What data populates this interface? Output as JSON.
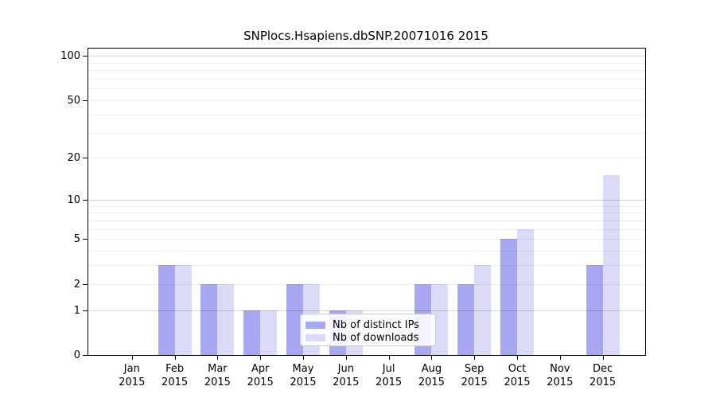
{
  "title": "SNPlocs.Hsapiens.dbSNP.20071016 2015",
  "chart_data": {
    "type": "bar",
    "title": "SNPlocs.Hsapiens.dbSNP.20071016 2015",
    "categories": [
      "Jan",
      "Feb",
      "Mar",
      "Apr",
      "May",
      "Jun",
      "Jul",
      "Aug",
      "Sep",
      "Oct",
      "Nov",
      "Dec"
    ],
    "category_year": "2015",
    "series": [
      {
        "name": "Nb of distinct IPs",
        "color": "#a7a7f2",
        "values": [
          0,
          3,
          2,
          1,
          2,
          1,
          0,
          2,
          2,
          5,
          0,
          3
        ]
      },
      {
        "name": "Nb of downloads",
        "color": "#dbdbf8",
        "values": [
          0,
          3,
          2,
          1,
          2,
          1,
          0,
          2,
          3,
          6,
          0,
          15
        ]
      }
    ],
    "xlabel": "",
    "ylabel": "",
    "y_scale": "log1p",
    "ylim": [
      0,
      100
    ],
    "y_ticks": [
      0,
      1,
      2,
      5,
      10,
      20,
      50,
      100
    ],
    "gridlines_minor": [
      2,
      3,
      4,
      5,
      6,
      7,
      8,
      9,
      20,
      30,
      40,
      50,
      60,
      70,
      80,
      90
    ],
    "gridlines_major": [
      1,
      10,
      100
    ],
    "grid": "on",
    "legend_position": "bottom-center"
  }
}
